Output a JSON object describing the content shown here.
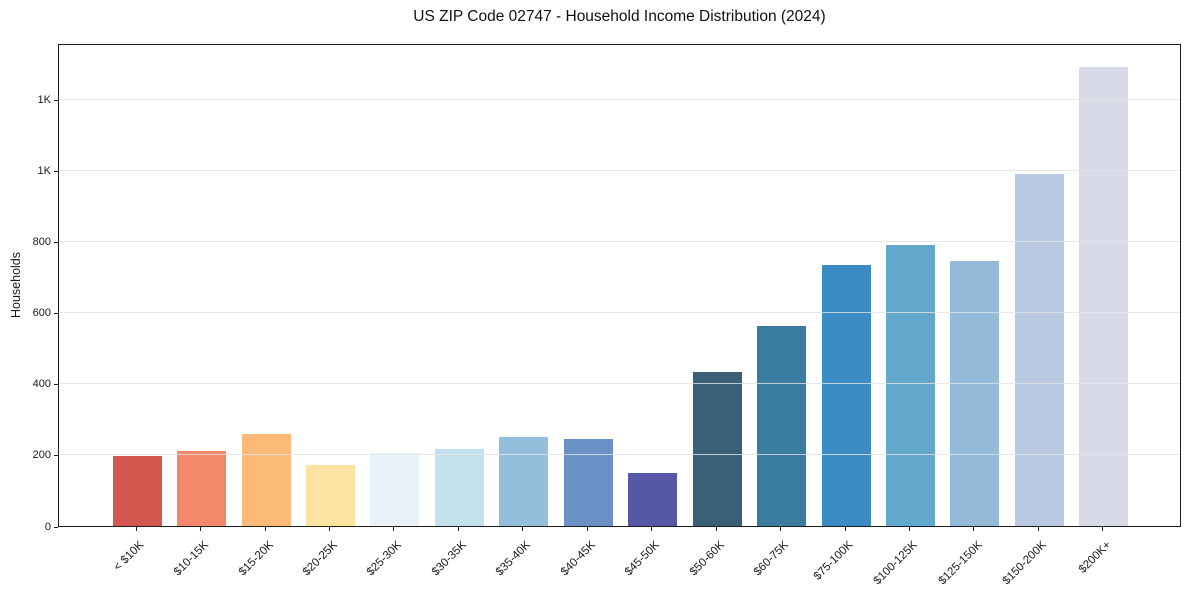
{
  "chart_data": {
    "type": "bar",
    "title": "US ZIP Code 02747 - Household Income Distribution (2024)",
    "xlabel": "",
    "ylabel": "Households",
    "categories": [
      "< $10K",
      "$10-15K",
      "$15-20K",
      "$20-25K",
      "$25-30K",
      "$30-35K",
      "$35-40K",
      "$40-45K",
      "$45-50K",
      "$50-60K",
      "$60-75K",
      "$75-100K",
      "$100-125K",
      "$125-150K",
      "$150-200K",
      "$200K+"
    ],
    "values": [
      196,
      211,
      259,
      172,
      207,
      217,
      251,
      245,
      150,
      435,
      563,
      734,
      790,
      747,
      991,
      1293
    ],
    "bar_colors": [
      "#d5564e",
      "#f4886a",
      "#fbba78",
      "#fde3a1",
      "#e8f2f8",
      "#c2e1ed",
      "#93bedc",
      "#6b90c6",
      "#5757a8",
      "#3a6078",
      "#3a7ba0",
      "#3a8cc2",
      "#61a8cc",
      "#93bad9",
      "#b8c9e1",
      "#d8dae8"
    ],
    "yticks": [
      {
        "value": 0,
        "label": "0"
      },
      {
        "value": 200,
        "label": "200"
      },
      {
        "value": 400,
        "label": "400"
      },
      {
        "value": 600,
        "label": "600"
      },
      {
        "value": 800,
        "label": "800"
      },
      {
        "value": 1000,
        "label": "1K"
      },
      {
        "value": 1200,
        "label": "1K"
      }
    ],
    "ylim": [
      0,
      1360
    ],
    "grid": "horizontal",
    "legend": "none",
    "axis_color": "#1c1c1c",
    "gridline_color": "#e6e6e6",
    "background_color": "#ffffff"
  }
}
